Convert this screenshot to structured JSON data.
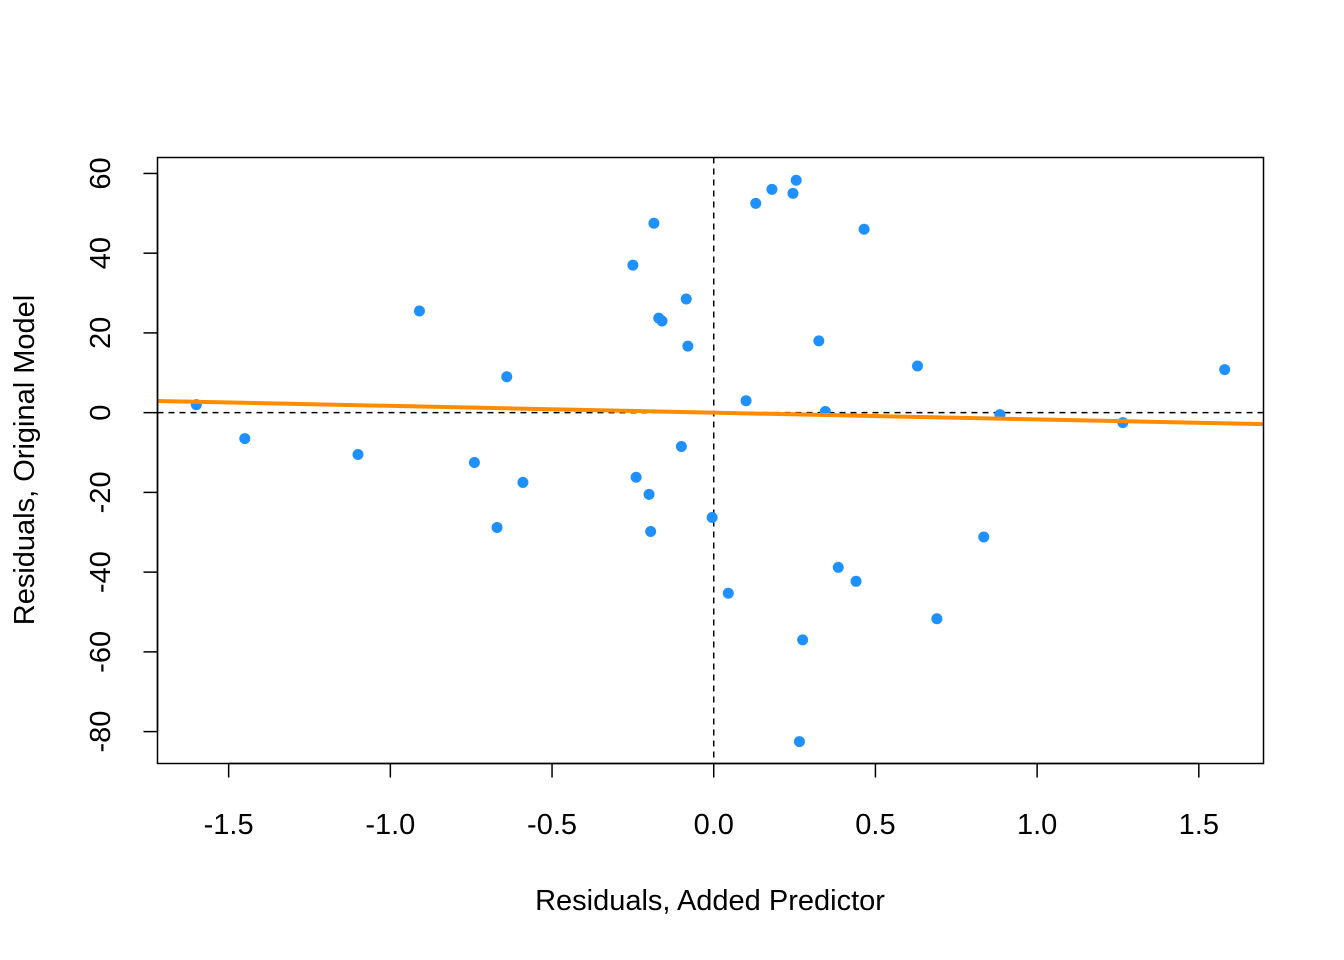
{
  "chart_data": {
    "type": "scatter",
    "title": "",
    "xlabel": "Residuals, Added Predictor",
    "ylabel": "Residuals, Original Model",
    "xlim": [
      -1.72,
      1.7
    ],
    "ylim": [
      -88,
      64
    ],
    "xticks": [
      -1.5,
      -1.0,
      -0.5,
      0.0,
      0.5,
      1.0,
      1.5
    ],
    "xtick_labels": [
      "-1.5",
      "-1.0",
      "-0.5",
      "0.0",
      "0.5",
      "1.0",
      "1.5"
    ],
    "yticks": [
      -80,
      -60,
      -40,
      -20,
      0,
      20,
      40,
      60
    ],
    "ytick_labels": [
      "-80",
      "-60",
      "-40",
      "-20",
      "0",
      "20",
      "40",
      "60"
    ],
    "grid": false,
    "reference_lines": {
      "vertical_x": 0,
      "horizontal_y": 0,
      "style": "dashed"
    },
    "fit_line": {
      "slope": -1.7,
      "intercept": 0,
      "color": "#FF8C00"
    },
    "point_color": "#1E90FF",
    "points": [
      {
        "x": -1.6,
        "y": 2.0
      },
      {
        "x": -1.45,
        "y": -6.5
      },
      {
        "x": -1.1,
        "y": -10.5
      },
      {
        "x": -0.91,
        "y": 25.5
      },
      {
        "x": -0.74,
        "y": -12.5
      },
      {
        "x": -0.67,
        "y": -28.8
      },
      {
        "x": -0.64,
        "y": 9.0
      },
      {
        "x": -0.59,
        "y": -17.5
      },
      {
        "x": -0.25,
        "y": 37.0
      },
      {
        "x": -0.24,
        "y": -16.2
      },
      {
        "x": -0.2,
        "y": -20.5
      },
      {
        "x": -0.195,
        "y": -29.8
      },
      {
        "x": -0.185,
        "y": 47.5
      },
      {
        "x": -0.17,
        "y": 23.7
      },
      {
        "x": -0.16,
        "y": 23.0
      },
      {
        "x": -0.1,
        "y": -8.5
      },
      {
        "x": -0.085,
        "y": 28.5
      },
      {
        "x": -0.08,
        "y": 16.7
      },
      {
        "x": -0.005,
        "y": -26.3
      },
      {
        "x": 0.045,
        "y": -45.3
      },
      {
        "x": 0.1,
        "y": 3.0
      },
      {
        "x": 0.13,
        "y": 52.5
      },
      {
        "x": 0.18,
        "y": 56.0
      },
      {
        "x": 0.245,
        "y": 55.0
      },
      {
        "x": 0.255,
        "y": 58.3
      },
      {
        "x": 0.265,
        "y": -82.5
      },
      {
        "x": 0.275,
        "y": -57.0
      },
      {
        "x": 0.325,
        "y": 18.0
      },
      {
        "x": 0.345,
        "y": 0.3
      },
      {
        "x": 0.385,
        "y": -38.8
      },
      {
        "x": 0.44,
        "y": -42.3
      },
      {
        "x": 0.465,
        "y": 46.0
      },
      {
        "x": 0.63,
        "y": 11.7
      },
      {
        "x": 0.69,
        "y": -51.7
      },
      {
        "x": 0.835,
        "y": -31.2
      },
      {
        "x": 0.885,
        "y": -0.5
      },
      {
        "x": 1.265,
        "y": -2.5
      },
      {
        "x": 1.58,
        "y": 10.8
      }
    ]
  }
}
